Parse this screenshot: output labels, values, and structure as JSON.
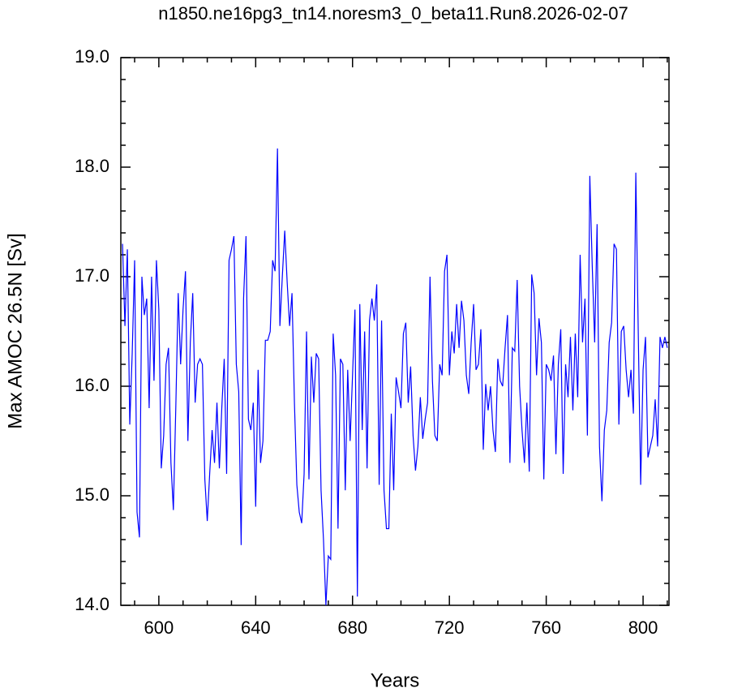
{
  "chart_data": {
    "type": "line",
    "title": "n1850.ne16pg3_tn14.noresm3_0_beta11.Run8.2026-02-07",
    "x_label": "Years",
    "y_label": "Max AMOC 26.5N [Sv]",
    "xlim": [
      584.3,
      810.7
    ],
    "ylim": [
      14,
      19
    ],
    "xticks": [
      600,
      640,
      680,
      720,
      760,
      800
    ],
    "xminorticks": [
      590,
      610,
      620,
      630,
      650,
      660,
      670,
      690,
      700,
      710,
      730,
      740,
      750,
      770,
      780,
      790,
      810
    ],
    "yticks": [
      {
        "value": 14,
        "label": "14.0"
      },
      {
        "value": 15,
        "label": "15.0"
      },
      {
        "value": 16,
        "label": "16.0"
      },
      {
        "value": 17,
        "label": "17.0"
      },
      {
        "value": 18,
        "label": "18.0"
      },
      {
        "value": 19,
        "label": "19.0"
      }
    ],
    "yminorticks": [
      14.2,
      14.4,
      14.6,
      14.8,
      15.2,
      15.4,
      15.6,
      15.8,
      16.2,
      16.4,
      16.6,
      16.8,
      17.2,
      17.4,
      17.6,
      17.8,
      18.2,
      18.4,
      18.6,
      18.8
    ],
    "x": [
      585,
      586,
      587,
      588,
      589,
      590,
      591,
      592,
      593,
      594,
      595,
      596,
      597,
      598,
      599,
      600,
      601,
      602,
      603,
      604,
      605,
      606,
      607,
      608,
      609,
      610,
      611,
      612,
      613,
      614,
      615,
      616,
      617,
      618,
      619,
      620,
      621,
      622,
      623,
      624,
      625,
      626,
      627,
      628,
      629,
      630,
      631,
      632,
      633,
      634,
      635,
      636,
      637,
      638,
      639,
      640,
      641,
      642,
      643,
      644,
      645,
      646,
      647,
      648,
      649,
      650,
      651,
      652,
      653,
      654,
      655,
      656,
      657,
      658,
      659,
      660,
      661,
      662,
      663,
      664,
      665,
      666,
      667,
      668,
      669,
      670,
      671,
      672,
      673,
      674,
      675,
      676,
      677,
      678,
      679,
      680,
      681,
      682,
      683,
      684,
      685,
      686,
      687,
      688,
      689,
      690,
      691,
      692,
      693,
      694,
      695,
      696,
      697,
      698,
      699,
      700,
      701,
      702,
      703,
      704,
      705,
      706,
      707,
      708,
      709,
      710,
      711,
      712,
      713,
      714,
      715,
      716,
      717,
      718,
      719,
      720,
      721,
      722,
      723,
      724,
      725,
      726,
      727,
      728,
      729,
      730,
      731,
      732,
      733,
      734,
      735,
      736,
      737,
      738,
      739,
      740,
      741,
      742,
      743,
      744,
      745,
      746,
      747,
      748,
      749,
      750,
      751,
      752,
      753,
      754,
      755,
      756,
      757,
      758,
      759,
      760,
      761,
      762,
      763,
      764,
      765,
      766,
      767,
      768,
      769,
      770,
      771,
      772,
      773,
      774,
      775,
      776,
      777,
      778,
      779,
      780,
      781,
      782,
      783,
      784,
      785,
      786,
      787,
      788,
      789,
      790,
      791,
      792,
      793,
      794,
      795,
      796,
      797,
      798,
      799,
      800,
      801,
      802,
      803,
      804,
      805,
      806,
      807,
      808,
      809,
      810
    ],
    "series": [
      {
        "name": "Max AMOC",
        "color": "#0000ff",
        "values": [
          17.3,
          16.55,
          17.25,
          15.65,
          16.3,
          17.15,
          14.85,
          14.62,
          17.0,
          16.65,
          16.8,
          15.8,
          17.0,
          16.05,
          17.15,
          16.7,
          15.25,
          15.55,
          16.2,
          16.35,
          15.3,
          14.87,
          15.8,
          16.85,
          16.2,
          16.7,
          17.05,
          15.5,
          16.4,
          16.85,
          15.85,
          16.2,
          16.25,
          16.2,
          15.15,
          14.77,
          15.2,
          15.6,
          15.3,
          15.85,
          15.25,
          15.8,
          16.25,
          15.2,
          17.15,
          17.25,
          17.37,
          16.2,
          15.95,
          14.55,
          16.8,
          17.37,
          15.7,
          15.6,
          15.85,
          14.9,
          16.15,
          15.3,
          15.5,
          16.42,
          16.42,
          16.5,
          17.15,
          17.05,
          18.17,
          16.55,
          17.0,
          17.42,
          16.95,
          16.55,
          16.85,
          15.85,
          15.1,
          14.85,
          14.75,
          15.2,
          16.5,
          15.15,
          16.27,
          15.85,
          16.3,
          16.25,
          15.05,
          14.6,
          14.0,
          14.45,
          14.42,
          16.48,
          16.1,
          14.7,
          16.25,
          16.2,
          15.05,
          16.15,
          15.5,
          16.1,
          16.7,
          14.08,
          16.75,
          15.6,
          16.5,
          15.25,
          16.6,
          16.8,
          16.6,
          16.93,
          15.1,
          16.6,
          15.05,
          14.7,
          14.7,
          15.75,
          15.05,
          16.08,
          15.95,
          15.8,
          16.48,
          16.58,
          15.85,
          16.18,
          15.55,
          15.23,
          15.45,
          15.9,
          15.52,
          15.7,
          15.85,
          17.0,
          16.05,
          15.55,
          15.5,
          16.2,
          16.1,
          17.05,
          17.2,
          16.1,
          16.5,
          16.3,
          16.75,
          16.35,
          16.78,
          16.6,
          16.1,
          15.93,
          16.4,
          16.75,
          16.15,
          16.2,
          16.52,
          15.42,
          16.02,
          15.78,
          16.0,
          15.6,
          15.4,
          16.25,
          16.05,
          16.0,
          16.35,
          16.65,
          15.3,
          16.35,
          16.32,
          16.97,
          16.0,
          15.6,
          15.3,
          15.85,
          15.22,
          17.02,
          16.85,
          16.1,
          16.62,
          16.4,
          15.15,
          16.2,
          16.15,
          16.05,
          16.28,
          15.38,
          16.2,
          16.52,
          15.2,
          16.2,
          15.9,
          16.45,
          15.78,
          16.48,
          15.9,
          17.2,
          16.4,
          16.8,
          15.55,
          17.92,
          17.1,
          16.4,
          17.48,
          15.45,
          14.95,
          15.6,
          15.78,
          16.4,
          16.58,
          17.3,
          17.25,
          15.65,
          16.5,
          16.55,
          16.15,
          15.9,
          16.15,
          15.75,
          17.95,
          16.5,
          15.1,
          16.15,
          16.45,
          15.35,
          15.45,
          15.55,
          15.88,
          15.45,
          16.45,
          16.35,
          16.45,
          16.35
        ]
      }
    ]
  }
}
